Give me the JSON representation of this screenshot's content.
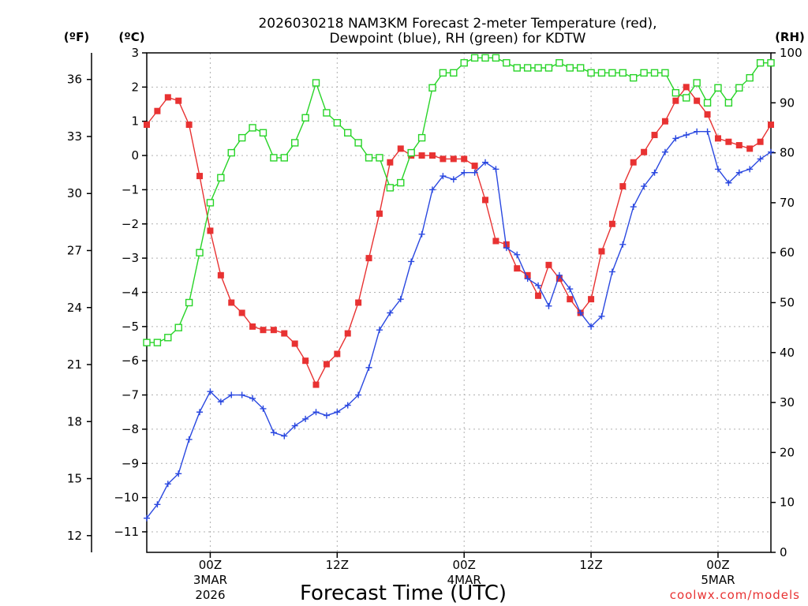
{
  "chart_data": {
    "type": "line",
    "title_line1": "2026030218 NAM3KM Forecast 2-meter Temperature (red),",
    "title_line2": "Dewpoint (blue), RH (green) for KDTW",
    "xlabel": "Forecast Time (UTC)",
    "credit": "coolwx.com/models",
    "units": {
      "fahrenheit": "(ºF)",
      "celsius": "(ºC)",
      "rh": "(RH)"
    },
    "x_range_hours": [
      0,
      59
    ],
    "x_ticks": [
      {
        "hour": 6,
        "label": "00Z",
        "sub1": "3MAR",
        "sub2": "2026"
      },
      {
        "hour": 18,
        "label": "12Z",
        "sub1": "",
        "sub2": ""
      },
      {
        "hour": 30,
        "label": "00Z",
        "sub1": "4MAR",
        "sub2": ""
      },
      {
        "hour": 42,
        "label": "12Z",
        "sub1": "",
        "sub2": ""
      },
      {
        "hour": 54,
        "label": "00Z",
        "sub1": "5MAR",
        "sub2": ""
      }
    ],
    "celsius_axis": {
      "min": -11.6,
      "max": 3,
      "ticks": [
        "3",
        "2",
        "1",
        "0",
        "-1",
        "-2",
        "-3",
        "-4",
        "-5",
        "-6",
        "-7",
        "-8",
        "-9",
        "-10",
        "-11"
      ]
    },
    "fahrenheit_axis": {
      "ticks": [
        "36",
        "33",
        "30",
        "27",
        "24",
        "21",
        "18",
        "15",
        "12"
      ]
    },
    "rh_axis": {
      "min": 0,
      "max": 100,
      "ticks": [
        "100",
        "90",
        "80",
        "70",
        "60",
        "50",
        "40",
        "30",
        "20",
        "10",
        "0"
      ]
    },
    "series": [
      {
        "name": "Temperature",
        "units": "C",
        "color": "#e83232",
        "marker": "filled-square",
        "x": [
          0,
          1,
          2,
          3,
          4,
          5,
          6,
          7,
          8,
          9,
          10,
          11,
          12,
          13,
          14,
          15,
          16,
          17,
          18,
          19,
          20,
          21,
          22,
          23,
          24,
          25,
          26,
          27,
          28,
          29,
          30,
          31,
          32,
          33,
          34,
          35,
          36,
          37,
          38,
          39,
          40,
          41,
          42,
          43,
          44,
          45,
          46,
          47,
          48,
          49,
          50,
          51,
          52,
          53,
          54,
          55,
          56,
          57,
          58,
          59
        ],
        "values": [
          0.9,
          1.3,
          1.7,
          1.6,
          0.9,
          -0.6,
          -2.2,
          -3.5,
          -4.3,
          -4.6,
          -5.0,
          -5.1,
          -5.1,
          -5.2,
          -5.5,
          -6.0,
          -6.7,
          -6.1,
          -5.8,
          -5.2,
          -4.3,
          -3.0,
          -1.7,
          -0.2,
          0.2,
          0.0,
          0.0,
          0.0,
          -0.1,
          -0.1,
          -0.1,
          -0.3,
          -1.3,
          -2.5,
          -2.6,
          -3.3,
          -3.5,
          -4.1,
          -3.2,
          -3.6,
          -4.2,
          -4.6,
          -4.2,
          -2.8,
          -2.0,
          -0.9,
          -0.2,
          0.1,
          0.6,
          1.0,
          1.6,
          2.0,
          1.6,
          1.2,
          0.5,
          0.4,
          0.3,
          0.2,
          0.4,
          0.9
        ]
      },
      {
        "name": "Dewpoint",
        "units": "C",
        "color": "#2a48e0",
        "marker": "plus",
        "x": [
          0,
          1,
          2,
          3,
          4,
          5,
          6,
          7,
          8,
          9,
          10,
          11,
          12,
          13,
          14,
          15,
          16,
          17,
          18,
          19,
          20,
          21,
          22,
          23,
          24,
          25,
          26,
          27,
          28,
          29,
          30,
          31,
          32,
          33,
          34,
          35,
          36,
          37,
          38,
          39,
          40,
          41,
          42,
          43,
          44,
          45,
          46,
          47,
          48,
          49,
          50,
          51,
          52,
          53,
          54,
          55,
          56,
          57,
          58,
          59
        ],
        "values": [
          -10.6,
          -10.2,
          -9.6,
          -9.3,
          -8.3,
          -7.5,
          -6.9,
          -7.2,
          -7.0,
          -7.0,
          -7.1,
          -7.4,
          -8.1,
          -8.2,
          -7.9,
          -7.7,
          -7.5,
          -7.6,
          -7.5,
          -7.3,
          -7.0,
          -6.2,
          -5.1,
          -4.6,
          -4.2,
          -3.1,
          -2.3,
          -1.0,
          -0.6,
          -0.7,
          -0.5,
          -0.5,
          -0.2,
          -0.4,
          -2.7,
          -2.9,
          -3.6,
          -3.8,
          -4.4,
          -3.5,
          -3.9,
          -4.6,
          -5.0,
          -4.7,
          -3.4,
          -2.6,
          -1.5,
          -0.9,
          -0.5,
          0.1,
          0.5,
          0.6,
          0.7,
          0.7,
          -0.4,
          -0.8,
          -0.5,
          -0.4,
          -0.1,
          0.1
        ]
      },
      {
        "name": "RH",
        "units": "%",
        "color": "#28d428",
        "marker": "open-square",
        "x": [
          0,
          1,
          2,
          3,
          4,
          5,
          6,
          7,
          8,
          9,
          10,
          11,
          12,
          13,
          14,
          15,
          16,
          17,
          18,
          19,
          20,
          21,
          22,
          23,
          24,
          25,
          26,
          27,
          28,
          29,
          30,
          31,
          32,
          33,
          34,
          35,
          36,
          37,
          38,
          39,
          40,
          41,
          42,
          43,
          44,
          45,
          46,
          47,
          48,
          49,
          50,
          51,
          52,
          53,
          54,
          55,
          56,
          57,
          58,
          59
        ],
        "values": [
          42,
          42,
          43,
          45,
          50,
          60,
          70,
          75,
          80,
          83,
          85,
          84,
          79,
          79,
          82,
          87,
          94,
          88,
          86,
          84,
          82,
          79,
          79,
          73,
          74,
          80,
          83,
          93,
          96,
          96,
          98,
          99,
          99,
          99,
          98,
          97,
          97,
          97,
          97,
          98,
          97,
          97,
          96,
          96,
          96,
          96,
          95,
          96,
          96,
          96,
          92,
          91,
          94,
          90,
          93,
          90,
          93,
          95,
          98,
          98
        ]
      }
    ]
  }
}
